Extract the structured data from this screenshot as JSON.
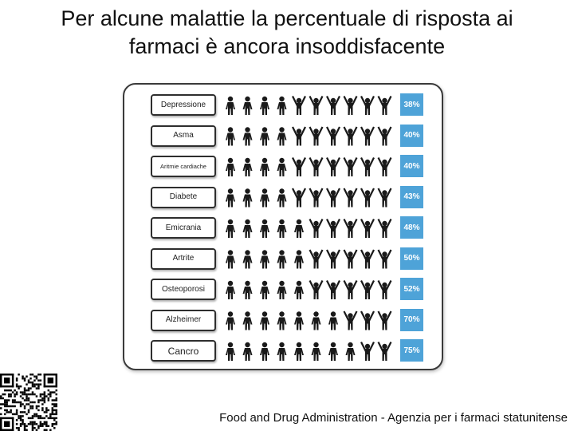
{
  "title_line1": "Per alcune malattie la percentuale di risposta ai",
  "title_line2": "farmaci è ancora insoddisfacente",
  "source": "Food and Drug Administration - Agenzia per i farmaci statunitense",
  "colors": {
    "percent_box": "#4ea3d8",
    "figure": "#1a1a1a",
    "border": "#2e2e2e"
  },
  "icons": {
    "responder": "person-arms-down-icon",
    "non_responder": "person-arms-up-icon"
  },
  "chart_data": {
    "type": "table",
    "title": "",
    "rows": [
      {
        "label": "Depressione",
        "percent_label": "38%",
        "value": 38,
        "arms_down_count": 4
      },
      {
        "label": "Asma",
        "percent_label": "40%",
        "value": 40,
        "arms_down_count": 4
      },
      {
        "label": "Aritmie cardiache",
        "percent_label": "40%",
        "value": 40,
        "arms_down_count": 4
      },
      {
        "label": "Diabete",
        "percent_label": "43%",
        "value": 43,
        "arms_down_count": 4
      },
      {
        "label": "Emicrania",
        "percent_label": "48%",
        "value": 48,
        "arms_down_count": 5
      },
      {
        "label": "Artrite",
        "percent_label": "50%",
        "value": 50,
        "arms_down_count": 5
      },
      {
        "label": "Osteoporosi",
        "percent_label": "52%",
        "value": 52,
        "arms_down_count": 5
      },
      {
        "label": "Alzheimer",
        "percent_label": "70%",
        "value": 70,
        "arms_down_count": 7
      },
      {
        "label": "Cancro",
        "percent_label": "75%",
        "value": 75,
        "arms_down_count": 8
      }
    ],
    "figures_per_row": 10
  }
}
